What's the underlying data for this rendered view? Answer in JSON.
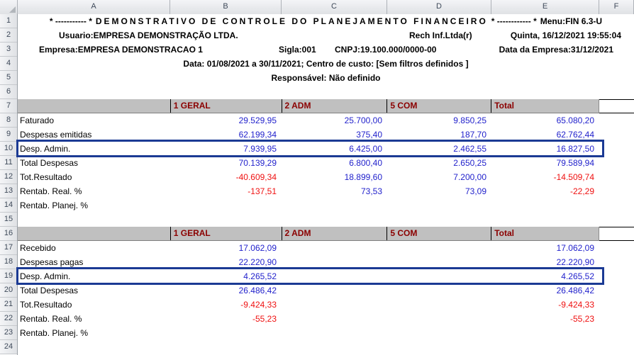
{
  "spreadsheet": {
    "column_letters": [
      "A",
      "B",
      "C",
      "D",
      "E",
      "F"
    ],
    "row_numbers": [
      "1",
      "2",
      "3",
      "4",
      "5",
      "6",
      "7",
      "8",
      "9",
      "10",
      "11",
      "12",
      "13",
      "14",
      "15",
      "16",
      "17",
      "18",
      "19",
      "20",
      "21",
      "22",
      "23",
      "24"
    ]
  },
  "header": {
    "title_prefix": "* ----------- *",
    "title_main": "DEMONSTRATIVO DE CONTROLE DO PLANEJAMENTO FINANCEIRO",
    "title_suffix": "* ------------ *",
    "title_menu": "Menu:FIN 6.3-U",
    "usuario": "Usuario:EMPRESA DEMONSTRAÇÃO LTDA.",
    "vendor": "Rech Inf.Ltda(r)",
    "datetime": "Quinta, 16/12/2021 19:55:04",
    "empresa": "Empresa:EMPRESA DEMONSTRACAO 1",
    "sigla": "Sigla:001",
    "cnpj": "CNPJ:19.100.000/0000-00",
    "data_empresa": "Data da Empresa:31/12/2021",
    "periodo": "Data: 01/08/2021 a 30/11/2021; Centro de custo: [Sem filtros definidos ]",
    "responsavel": "Responsável: Não definido"
  },
  "table_emitidas": {
    "columns": [
      "1 GERAL",
      "2 ADM",
      "5 COM",
      "Total"
    ],
    "rows": [
      {
        "label": "Faturado",
        "v1": "29.529,95",
        "v2": "25.700,00",
        "v3": "9.850,25",
        "total": "65.080,20"
      },
      {
        "label": "Despesas emitidas",
        "v1": "62.199,34",
        "v2": "375,40",
        "v3": "187,70",
        "total": "62.762,44"
      },
      {
        "label": "Desp. Admin.",
        "v1": "7.939,95",
        "v2": "6.425,00",
        "v3": "2.462,55",
        "total": "16.827,50",
        "highlighted": true
      },
      {
        "label": "Total Despesas",
        "v1": "70.139,29",
        "v2": "6.800,40",
        "v3": "2.650,25",
        "total": "79.589,94"
      },
      {
        "label": "Tot.Resultado",
        "v1": "-40.609,34",
        "v2": "18.899,60",
        "v3": "7.200,00",
        "total": "-14.509,74"
      },
      {
        "label": "Rentab. Real. %",
        "v1": "-137,51",
        "v2": "73,53",
        "v3": "73,09",
        "total": "-22,29"
      },
      {
        "label": "Rentab. Planej. %",
        "v1": "",
        "v2": "",
        "v3": "",
        "total": ""
      }
    ]
  },
  "table_pagas": {
    "columns": [
      "1 GERAL",
      "2 ADM",
      "5 COM",
      "Total"
    ],
    "rows": [
      {
        "label": "Recebido",
        "v1": "17.062,09",
        "v2": "",
        "v3": "",
        "total": "17.062,09"
      },
      {
        "label": "Despesas pagas",
        "v1": "22.220,90",
        "v2": "",
        "v3": "",
        "total": "22.220,90"
      },
      {
        "label": "Desp. Admin.",
        "v1": "4.265,52",
        "v2": "",
        "v3": "",
        "total": "4.265,52",
        "highlighted": true
      },
      {
        "label": "Total Despesas",
        "v1": "26.486,42",
        "v2": "",
        "v3": "",
        "total": "26.486,42"
      },
      {
        "label": "Tot.Resultado",
        "v1": "-9.424,33",
        "v2": "",
        "v3": "",
        "total": "-9.424,33"
      },
      {
        "label": "Rentab. Real. %",
        "v1": "-55,23",
        "v2": "",
        "v3": "",
        "total": "-55,23"
      },
      {
        "label": "Rentab. Planej. %",
        "v1": "",
        "v2": "",
        "v3": "",
        "total": ""
      }
    ]
  },
  "colors": {
    "positive_value": "#2222cc",
    "negative_value": "#ef1010",
    "band_text": "#8b0000",
    "band_bg": "#c0c0c0",
    "highlight_border": "#1b3a94"
  }
}
